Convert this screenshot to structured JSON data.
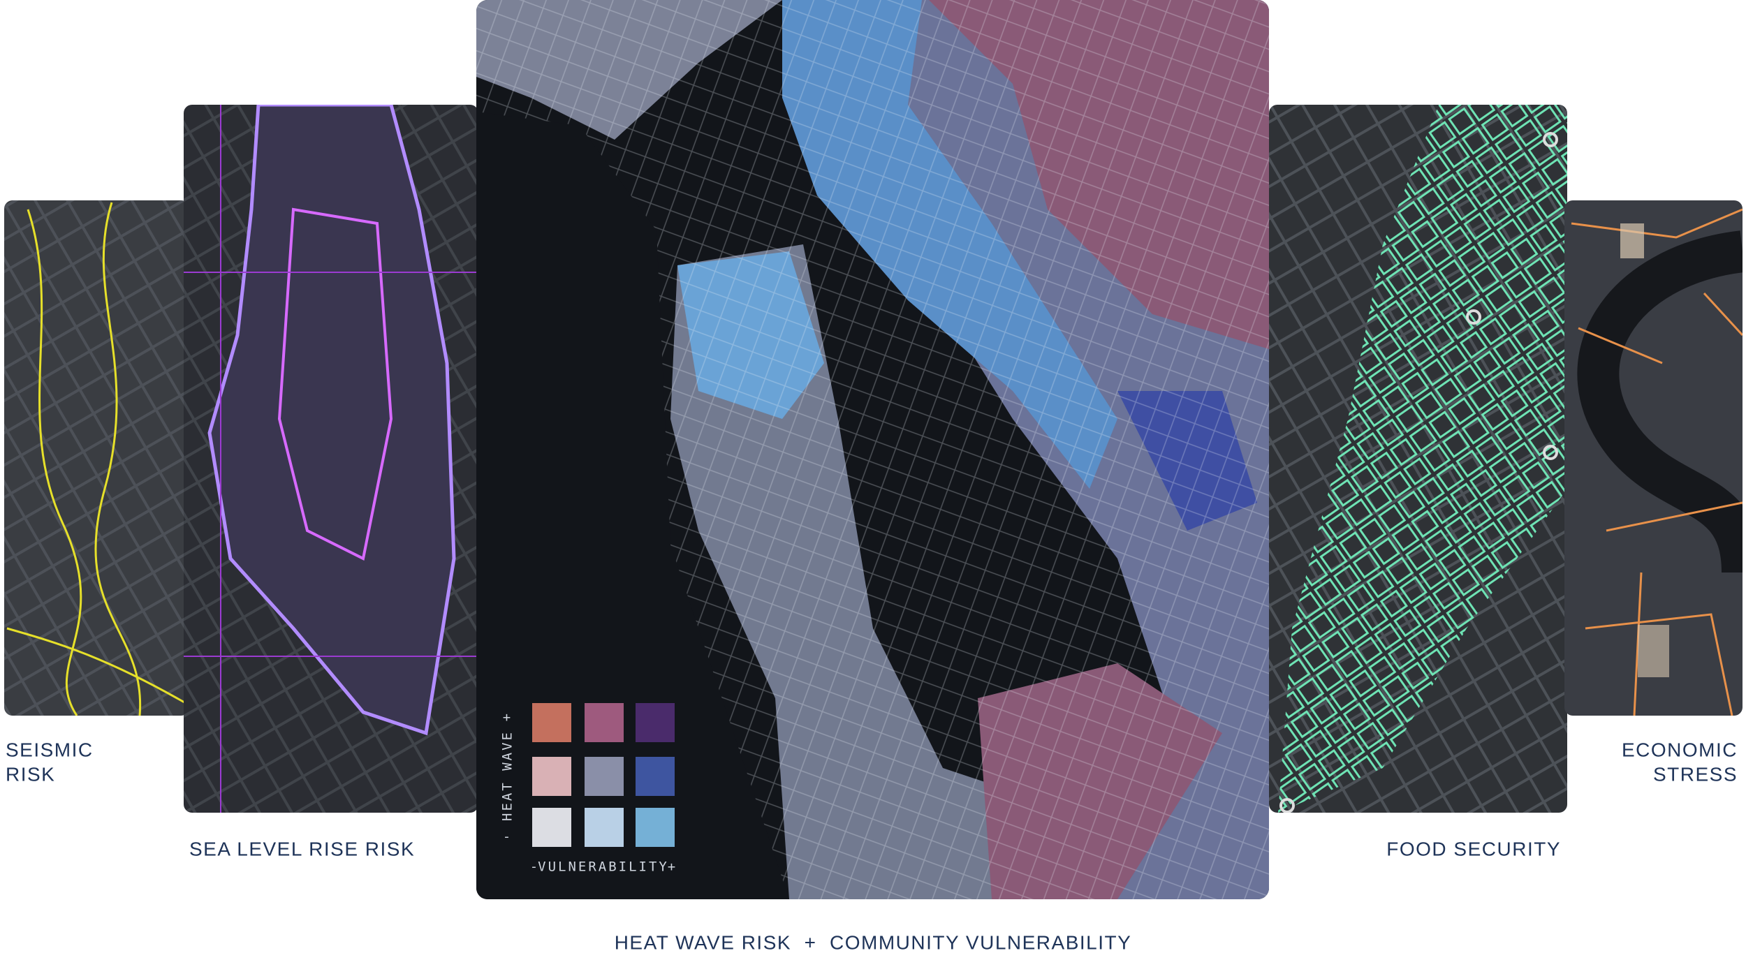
{
  "cards": [
    {
      "label_lines": [
        "SEISMIC",
        "RISK"
      ]
    },
    {
      "label": "SEA LEVEL RISE RISK"
    },
    {
      "label": "HEAT WAVE RISK  +  COMMUNITY VULNERABILITY"
    },
    {
      "label": "FOOD SECURITY"
    },
    {
      "label_lines": [
        "ECONOMIC",
        "STRESS"
      ]
    }
  ],
  "legend": {
    "y_label": "HEAT WAVE",
    "x_label": "VULNERABILITY",
    "low": "-",
    "high": "+"
  }
}
